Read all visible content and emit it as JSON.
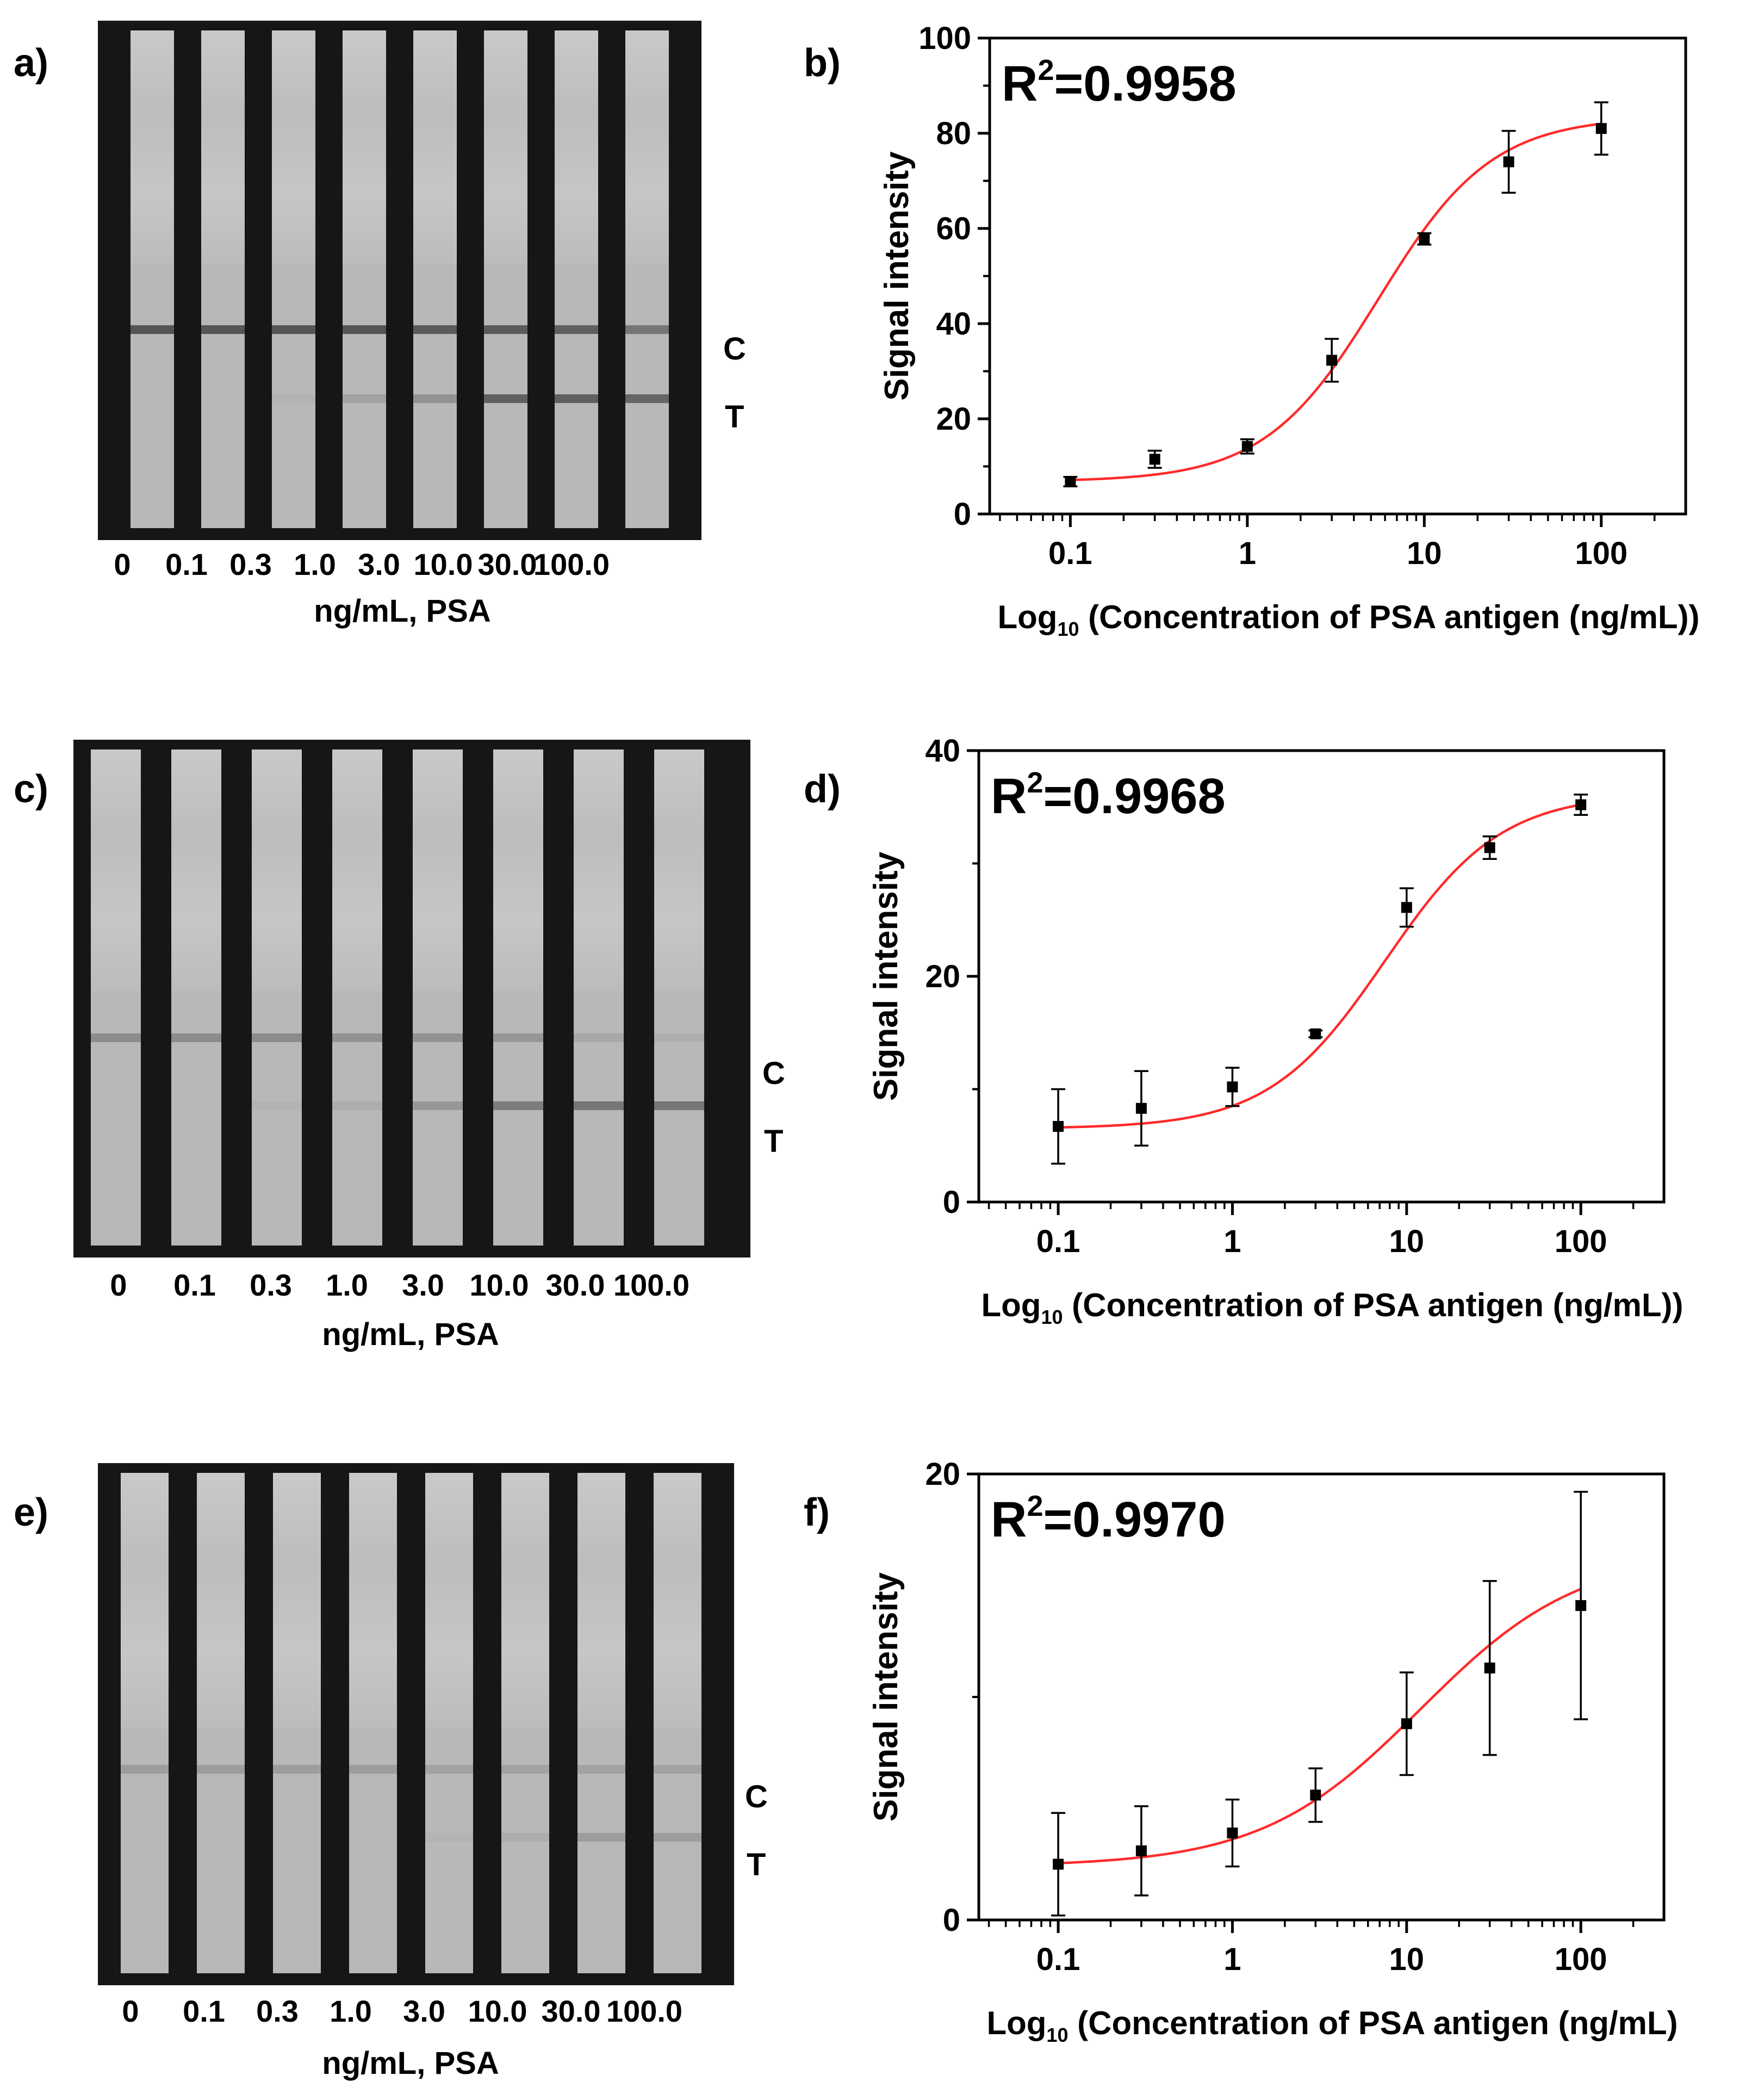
{
  "panels": [
    {
      "letter": "a)"
    },
    {
      "letter": "b)"
    },
    {
      "letter": "c)"
    },
    {
      "letter": "d)"
    },
    {
      "letter": "e)"
    },
    {
      "letter": "f)"
    }
  ],
  "strip_photos": [
    {
      "concentrations": [
        "0",
        "0.1",
        "0.3",
        "1.0",
        "3.0",
        "10.0",
        "30.0",
        "100.0"
      ],
      "unit_label": "ng/mL, PSA",
      "control_label": "C",
      "test_label": "T",
      "control_line_intensity": [
        0.9,
        0.9,
        0.9,
        0.9,
        0.85,
        0.85,
        0.8,
        0.6
      ],
      "test_line_intensity": [
        0.0,
        0.0,
        0.05,
        0.2,
        0.35,
        0.8,
        0.8,
        0.75
      ]
    },
    {
      "concentrations": [
        "0",
        "0.1",
        "0.3",
        "1.0",
        "3.0",
        "10.0",
        "30.0",
        "100.0"
      ],
      "unit_label": "ng/mL, PSA",
      "control_label": "C",
      "test_label": "T",
      "control_line_intensity": [
        0.4,
        0.4,
        0.4,
        0.35,
        0.35,
        0.3,
        0.15,
        0.1
      ],
      "test_line_intensity": [
        0.0,
        0.0,
        0.05,
        0.1,
        0.3,
        0.55,
        0.6,
        0.6
      ]
    },
    {
      "concentrations": [
        "0",
        "0.1",
        "0.3",
        "1.0",
        "3.0",
        "10.0",
        "30.0",
        "100.0"
      ],
      "unit_label": "ng/mL, PSA",
      "control_label": "C",
      "test_label": "T",
      "control_line_intensity": [
        0.25,
        0.25,
        0.25,
        0.25,
        0.2,
        0.2,
        0.2,
        0.2
      ],
      "test_line_intensity": [
        0.0,
        0.0,
        0.0,
        0.0,
        0.05,
        0.1,
        0.25,
        0.25
      ]
    }
  ],
  "chart_data": [
    {
      "type": "scatter",
      "x_scale": "log",
      "x": [
        0.1,
        0.3,
        1,
        3,
        10,
        30,
        100
      ],
      "y": [
        6.8,
        11.5,
        14.2,
        32.3,
        57.8,
        74,
        81
      ],
      "y_err": [
        1,
        1.8,
        1.5,
        4.5,
        1.2,
        6.5,
        5.5
      ],
      "fit_curve": {
        "type": "logistic",
        "bottom": 6.8,
        "top": 83.5,
        "ec50": 5.5,
        "hill": 1.35
      },
      "annotation": "R²=0.9958",
      "xlabel_prefix": "Log",
      "xlabel_sub": "10",
      "xlabel_rest": " (Concentration of PSA antigen (ng/mL))",
      "ylabel": "Signal intensity",
      "xlim": [
        0.035,
        300
      ],
      "ylim": [
        0,
        100
      ],
      "yticks": [
        0,
        20,
        40,
        60,
        80,
        100
      ],
      "xticks": [
        0.1,
        1,
        10,
        100
      ],
      "xtick_labels": [
        "0.1",
        "1",
        "10",
        "100"
      ],
      "colors": {
        "fit": "#ff2a2a",
        "points": "#000000"
      }
    },
    {
      "type": "scatter",
      "x_scale": "log",
      "x": [
        0.1,
        0.3,
        1,
        3,
        10,
        30,
        100
      ],
      "y": [
        6.7,
        8.3,
        10.2,
        14.9,
        26.1,
        31.4,
        35.2
      ],
      "y_err": [
        3.3,
        3.3,
        1.7,
        0.3,
        1.7,
        1,
        0.9
      ],
      "fit_curve": {
        "type": "logistic",
        "bottom": 6.5,
        "top": 36.2,
        "ec50": 7.5,
        "hill": 1.3
      },
      "annotation": "R²=0.9968",
      "xlabel_prefix": "Log",
      "xlabel_sub": "10",
      "xlabel_rest": " (Concentration of PSA antigen (ng/mL))",
      "ylabel": "Signal intensity",
      "xlim": [
        0.035,
        300
      ],
      "ylim": [
        0,
        40
      ],
      "yticks": [
        0,
        20,
        40
      ],
      "xticks": [
        0.1,
        1,
        10,
        100
      ],
      "xtick_labels": [
        "0.1",
        "1",
        "10",
        "100"
      ],
      "colors": {
        "fit": "#ff2a2a",
        "points": "#000000"
      }
    },
    {
      "type": "scatter",
      "x_scale": "log",
      "x": [
        0.1,
        0.3,
        1,
        3,
        10,
        30,
        100
      ],
      "y": [
        2.5,
        3.1,
        3.9,
        5.6,
        8.8,
        11.3,
        14.1
      ],
      "y_err": [
        2.3,
        2,
        1.5,
        1.2,
        2.3,
        3.9,
        5.1
      ],
      "fit_curve": {
        "type": "logistic",
        "bottom": 2.4,
        "top": 16.5,
        "ec50": 12,
        "hill": 0.95
      },
      "annotation": "R²=0.9970",
      "xlabel_prefix": "Log",
      "xlabel_sub": "10",
      "xlabel_rest": " (Concentration of PSA antigen (ng/mL)",
      "ylabel": "Signal intensity",
      "xlim": [
        0.035,
        300
      ],
      "ylim": [
        0,
        20
      ],
      "yticks": [
        0,
        20
      ],
      "xticks": [
        0.1,
        1,
        10,
        100
      ],
      "xtick_labels": [
        "0.1",
        "1",
        "10",
        "100"
      ],
      "colors": {
        "fit": "#ff2a2a",
        "points": "#000000"
      }
    }
  ]
}
